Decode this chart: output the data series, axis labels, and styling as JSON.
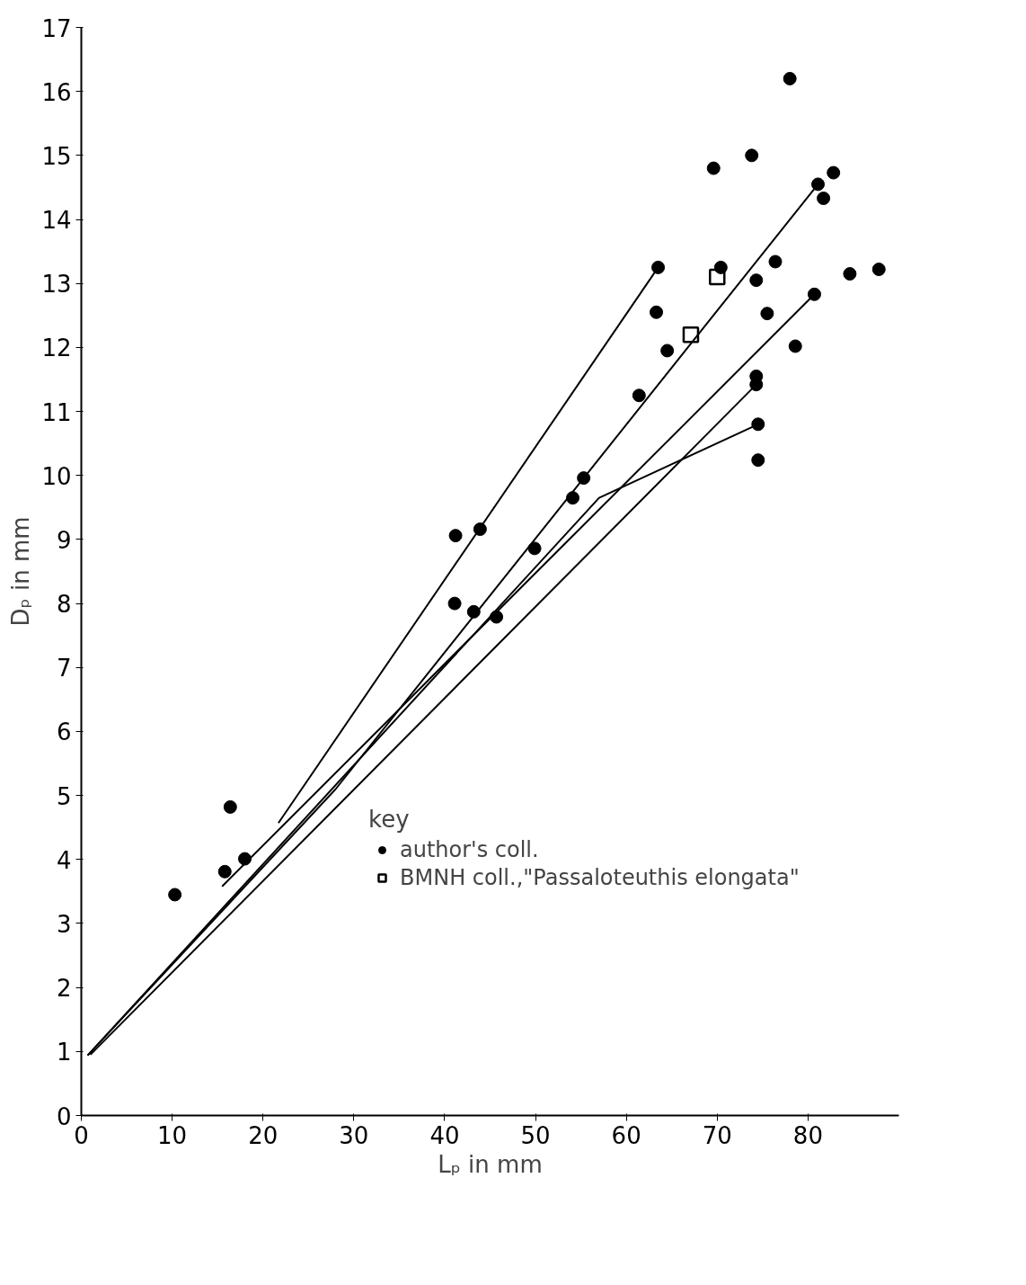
{
  "chart_data": {
    "type": "scatter",
    "xlabel": "Lₚ in mm",
    "ylabel": "Dₚ in mm",
    "legend_title": "key",
    "legend": "right",
    "grid": false,
    "xlim": [
      0,
      90
    ],
    "ylim": [
      0,
      17
    ],
    "xticks": [
      0,
      10,
      20,
      30,
      40,
      50,
      60,
      70,
      80
    ],
    "yticks": [
      0,
      1,
      2,
      3,
      4,
      5,
      6,
      7,
      8,
      9,
      10,
      11,
      12,
      13,
      14,
      15,
      16,
      17
    ],
    "series": [
      {
        "name": "author's coll.",
        "marker": "circle",
        "color": "#000000",
        "x": [
          10.3,
          15.8,
          16.4,
          18.0,
          41.1,
          41.2,
          43.9,
          43.2,
          45.7,
          49.9,
          54.1,
          55.3,
          61.4,
          63.3,
          63.5,
          64.5,
          69.6,
          70.4,
          73.8,
          74.3,
          74.3,
          74.3,
          74.5,
          74.5,
          75.5,
          76.4,
          78.0,
          78.6,
          80.7,
          81.1,
          81.7,
          82.8,
          84.6,
          87.8
        ],
        "values": [
          3.45,
          3.81,
          4.82,
          4.01,
          8.0,
          9.06,
          9.16,
          7.87,
          7.79,
          8.86,
          9.65,
          9.96,
          11.25,
          12.55,
          13.25,
          11.95,
          14.8,
          13.25,
          15.0,
          13.05,
          11.55,
          11.42,
          10.8,
          10.24,
          12.53,
          13.34,
          16.2,
          12.02,
          12.83,
          14.55,
          14.33,
          14.73,
          13.15,
          13.22
        ]
      },
      {
        "name": "BMNH coll.,\"Passaloteuthis elongata\"",
        "marker": "square",
        "color": "#000000",
        "x": [
          70.0,
          67.1
        ],
        "values": [
          13.1,
          12.2
        ]
      },
      {
        "type": "line",
        "marker": "none",
        "line_style": "solid",
        "color": "#000000",
        "x": [
          21.7,
          63.5
        ],
        "values": [
          4.57,
          13.25
        ]
      },
      {
        "type": "line",
        "marker": "none",
        "line_style": "solid",
        "color": "#000000",
        "x": [
          0.7,
          28.0,
          81.1
        ],
        "values": [
          0.94,
          5.1,
          14.55
        ]
      },
      {
        "type": "line",
        "marker": "none",
        "line_style": "solid",
        "color": "#000000",
        "x": [
          15.5,
          80.7
        ],
        "values": [
          3.58,
          12.83
        ]
      },
      {
        "type": "line",
        "marker": "none",
        "line_style": "solid",
        "color": "#000000",
        "x": [
          1.0,
          74.3
        ],
        "values": [
          0.95,
          11.42
        ]
      },
      {
        "type": "line",
        "marker": "none",
        "line_style": "solid",
        "color": "#000000",
        "x": [
          0.7,
          57.0,
          74.5
        ],
        "values": [
          0.94,
          9.65,
          10.8
        ]
      }
    ]
  }
}
